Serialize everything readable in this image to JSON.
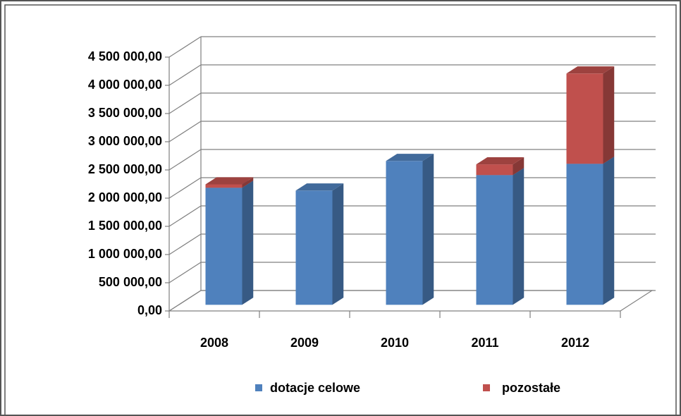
{
  "chart_data": {
    "type": "bar3d_stacked",
    "categories": [
      "2008",
      "2009",
      "2010",
      "2011",
      "2012"
    ],
    "series": [
      {
        "name": "dotacje celowe",
        "color": "#4f81bd",
        "values": [
          2075000,
          2025000,
          2550000,
          2300000,
          2500000
        ]
      },
      {
        "name": "pozostałe",
        "color": "#c0504d",
        "values": [
          60000,
          0,
          0,
          190000,
          1600000
        ]
      }
    ],
    "ylim": [
      0,
      4500000
    ],
    "yticks": [
      {
        "value": 0,
        "label": "0,00"
      },
      {
        "value": 500000,
        "label": "500 000,00"
      },
      {
        "value": 1000000,
        "label": "1 000 000,00"
      },
      {
        "value": 1500000,
        "label": "1 500 000,00"
      },
      {
        "value": 2000000,
        "label": "2 000 000,00"
      },
      {
        "value": 2500000,
        "label": "2 500 000,00"
      },
      {
        "value": 3000000,
        "label": "3 000 000,00"
      },
      {
        "value": 3500000,
        "label": "3 500 000,00"
      },
      {
        "value": 4000000,
        "label": "4 000 000,00"
      },
      {
        "value": 4500000,
        "label": "4 500 000,00"
      }
    ],
    "grid": true,
    "legend": "bottom"
  }
}
